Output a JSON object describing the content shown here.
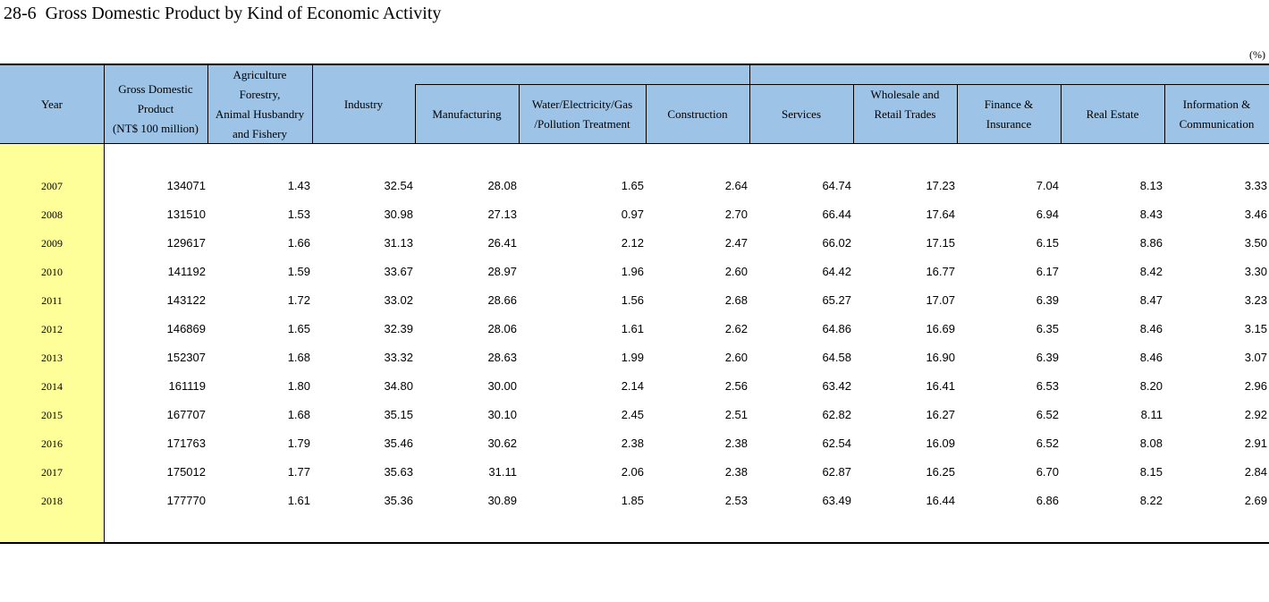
{
  "title": "28-6  Gross Domestic Product by Kind of Economic Activity",
  "unit": "(%)",
  "headers": {
    "year": "Year",
    "gdp_l1": "Gross Domestic",
    "gdp_l2": "Product",
    "gdp_l3": "(NT$ 100 million)",
    "agri_l1": "Agriculture",
    "agri_l2": "Forestry,",
    "agri_l3": "Animal Husbandry",
    "agri_l4": "and Fishery",
    "industry": "Industry",
    "manufacturing": "Manufacturing",
    "water_l1": "Water/Electricity/Gas",
    "water_l2": "/Pollution Treatment",
    "construction": "Construction",
    "services": "Services",
    "wholesale_l1": "Wholesale and",
    "wholesale_l2": "Retail Trades",
    "finance_l1": "Finance &",
    "finance_l2": "Insurance",
    "realestate": "Real Estate",
    "info_l1": "Information &",
    "info_l2": "Communication"
  },
  "rows": [
    [
      "2007",
      "134071",
      "1.43",
      "32.54",
      "28.08",
      "1.65",
      "2.64",
      "64.74",
      "17.23",
      "7.04",
      "8.13",
      "3.33"
    ],
    [
      "2008",
      "131510",
      "1.53",
      "30.98",
      "27.13",
      "0.97",
      "2.70",
      "66.44",
      "17.64",
      "6.94",
      "8.43",
      "3.46"
    ],
    [
      "2009",
      "129617",
      "1.66",
      "31.13",
      "26.41",
      "2.12",
      "2.47",
      "66.02",
      "17.15",
      "6.15",
      "8.86",
      "3.50"
    ],
    [
      "2010",
      "141192",
      "1.59",
      "33.67",
      "28.97",
      "1.96",
      "2.60",
      "64.42",
      "16.77",
      "6.17",
      "8.42",
      "3.30"
    ],
    [
      "2011",
      "143122",
      "1.72",
      "33.02",
      "28.66",
      "1.56",
      "2.68",
      "65.27",
      "17.07",
      "6.39",
      "8.47",
      "3.23"
    ],
    [
      "2012",
      "146869",
      "1.65",
      "32.39",
      "28.06",
      "1.61",
      "2.62",
      "64.86",
      "16.69",
      "6.35",
      "8.46",
      "3.15"
    ],
    [
      "2013",
      "152307",
      "1.68",
      "33.32",
      "28.63",
      "1.99",
      "2.60",
      "64.58",
      "16.90",
      "6.39",
      "8.46",
      "3.07"
    ],
    [
      "2014",
      "161119",
      "1.80",
      "34.80",
      "30.00",
      "2.14",
      "2.56",
      "63.42",
      "16.41",
      "6.53",
      "8.20",
      "2.96"
    ],
    [
      "2015",
      "167707",
      "1.68",
      "35.15",
      "30.10",
      "2.45",
      "2.51",
      "62.82",
      "16.27",
      "6.52",
      "8.11",
      "2.92"
    ],
    [
      "2016",
      "171763",
      "1.79",
      "35.46",
      "30.62",
      "2.38",
      "2.38",
      "62.54",
      "16.09",
      "6.52",
      "8.08",
      "2.91"
    ],
    [
      "2017",
      "175012",
      "1.77",
      "35.63",
      "31.11",
      "2.06",
      "2.38",
      "62.87",
      "16.25",
      "6.70",
      "8.15",
      "2.84"
    ],
    [
      "2018",
      "177770",
      "1.61",
      "35.36",
      "30.89",
      "1.85",
      "2.53",
      "63.49",
      "16.44",
      "6.86",
      "8.22",
      "2.69"
    ]
  ],
  "colors": {
    "header_bg": "#9dc3e6",
    "year_bg": "#ffff99"
  }
}
